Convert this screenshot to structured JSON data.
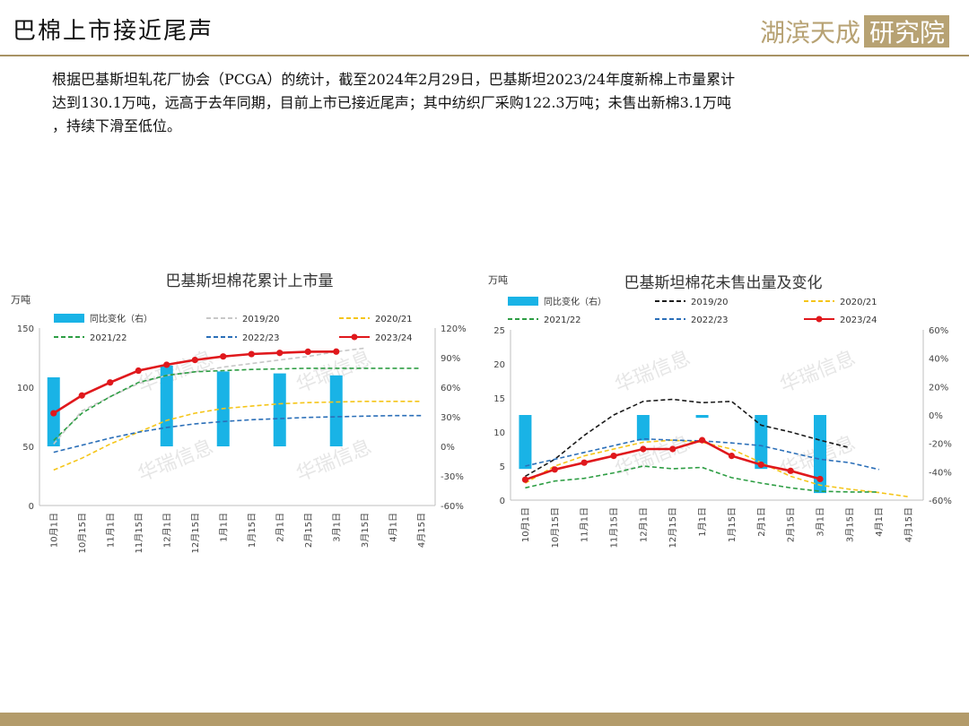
{
  "page": {
    "title": "巴棉上市接近尾声",
    "logo_text": "湖滨天成研究院",
    "paragraph_lines": [
      "根据巴基斯坦轧花厂协会（PCGA）的统计，截至2024年2月29日，巴基斯坦2023/24年度新棉上市量累计",
      "达到130.1万吨，远高于去年同期，目前上市已接近尾声；其中纺织厂采购122.3万吨；未售出新棉3.1万吨",
      "，持续下滑至低位。"
    ],
    "watermark_text": "华瑞信息"
  },
  "colors": {
    "bar": "#19b3e6",
    "s2019": "#c8c8c8",
    "s2019_right": "#1a1a1a",
    "s2020": "#f5c518",
    "s2021": "#2e9e44",
    "s2022": "#2b6fb8",
    "s2023": "#e0181c",
    "header_line": "#a89264",
    "footer": "#b39b6a"
  },
  "chart_data": [
    {
      "type": "line",
      "title": "巴基斯坦棉花累计上市量",
      "ylabel": "万吨",
      "categories": [
        "10月1日",
        "10月15日",
        "11月1日",
        "11月15日",
        "12月1日",
        "12月15日",
        "1月1日",
        "1月15日",
        "2月1日",
        "2月15日",
        "3月1日",
        "3月15日",
        "4月1日",
        "4月15日"
      ],
      "ylim": [
        0,
        150
      ],
      "yticks": [
        0,
        50,
        100,
        150
      ],
      "y2lim": [
        -60,
        120
      ],
      "y2ticks": [
        -60,
        -30,
        0,
        30,
        60,
        90,
        120
      ],
      "y2ticklabels": [
        "-60%",
        "-30%",
        "0%",
        "30%",
        "60%",
        "90%",
        "120%"
      ],
      "legend": [
        {
          "label": "同比变化（右）",
          "key": "bar",
          "kind": "bar"
        },
        {
          "label": "2019/20",
          "key": "s2019",
          "kind": "dash"
        },
        {
          "label": "2020/21",
          "key": "s2020",
          "kind": "dash"
        },
        {
          "label": "2021/22",
          "key": "s2021",
          "kind": "dash"
        },
        {
          "label": "2022/23",
          "key": "s2022",
          "kind": "dash"
        },
        {
          "label": "2023/24",
          "key": "s2023",
          "kind": "solid"
        }
      ],
      "bars": {
        "name": "同比变化（右）",
        "axis": "right",
        "values": [
          70,
          null,
          null,
          null,
          82,
          null,
          76,
          null,
          74,
          null,
          72,
          null,
          null,
          null
        ]
      },
      "series": [
        {
          "name": "2019/20",
          "key": "s2019",
          "axis": "left",
          "values": [
            52,
            80,
            92,
            103,
            110,
            113,
            117,
            120,
            123,
            126,
            130,
            133,
            null,
            null
          ]
        },
        {
          "name": "2020/21",
          "key": "s2020",
          "axis": "left",
          "values": [
            30,
            40,
            52,
            62,
            72,
            78,
            82,
            84,
            86,
            87,
            87.5,
            88,
            88,
            88
          ]
        },
        {
          "name": "2021/22",
          "key": "s2021",
          "axis": "left",
          "values": [
            55,
            78,
            92,
            104,
            110,
            113,
            114,
            115,
            115.5,
            116,
            116,
            116,
            116,
            116
          ]
        },
        {
          "name": "2022/23",
          "key": "s2022",
          "axis": "left",
          "values": [
            45,
            51,
            57,
            62,
            66,
            69,
            71,
            72.5,
            73.5,
            74.5,
            75,
            75.5,
            76,
            76
          ]
        },
        {
          "name": "2023/24",
          "key": "s2023",
          "axis": "left",
          "marker": true,
          "values": [
            78,
            93,
            104,
            114,
            119,
            123,
            126,
            128,
            129,
            130,
            130.1,
            null,
            null,
            null
          ]
        }
      ]
    },
    {
      "type": "line",
      "title": "巴基斯坦棉花未售出量及变化",
      "ylabel": "万吨",
      "categories": [
        "10月1日",
        "10月15日",
        "11月1日",
        "11月15日",
        "12月1日",
        "12月15日",
        "1月1日",
        "1月15日",
        "2月1日",
        "2月15日",
        "3月1日",
        "3月15日",
        "4月1日",
        "4月15日"
      ],
      "ylim": [
        0,
        25
      ],
      "yticks": [
        0,
        5,
        10,
        15,
        20,
        25
      ],
      "y2lim": [
        -60,
        60
      ],
      "y2ticks": [
        -60,
        -40,
        -20,
        0,
        20,
        40,
        60
      ],
      "y2ticklabels": [
        "-60%",
        "-40%",
        "-20%",
        "0%",
        "20%",
        "40%",
        "60%"
      ],
      "legend": [
        {
          "label": "同比变化（右）",
          "key": "bar",
          "kind": "bar"
        },
        {
          "label": "2019/20",
          "key": "s2019_right",
          "kind": "dash"
        },
        {
          "label": "2020/21",
          "key": "s2020",
          "kind": "dash"
        },
        {
          "label": "2021/22",
          "key": "s2021",
          "kind": "dash"
        },
        {
          "label": "2022/23",
          "key": "s2022",
          "kind": "dash"
        },
        {
          "label": "2023/24",
          "key": "s2023",
          "kind": "solid"
        }
      ],
      "bars": {
        "name": "同比变化（右）",
        "axis": "right",
        "values": [
          -38,
          null,
          null,
          null,
          -18,
          null,
          -2,
          null,
          -38,
          null,
          -55,
          null,
          null,
          null
        ]
      },
      "series": [
        {
          "name": "2019/20",
          "key": "s2019_right",
          "axis": "left",
          "values": [
            3.5,
            6,
            9.5,
            12.5,
            14.5,
            14.8,
            14.3,
            14.5,
            11,
            10,
            8.8,
            7.7,
            null,
            null
          ]
        },
        {
          "name": "2020/21",
          "key": "s2020",
          "axis": "left",
          "values": [
            2.5,
            5,
            6.5,
            7.5,
            8.5,
            8.8,
            8.5,
            7.5,
            5.5,
            3.5,
            2.2,
            1.6,
            1.1,
            0.5
          ]
        },
        {
          "name": "2021/22",
          "key": "s2021",
          "axis": "left",
          "values": [
            1.8,
            2.8,
            3.2,
            4,
            5,
            4.6,
            4.8,
            3.3,
            2.5,
            1.8,
            1.3,
            1.2,
            1.2,
            null
          ]
        },
        {
          "name": "2022/23",
          "key": "s2022",
          "axis": "left",
          "values": [
            5,
            6,
            7,
            8,
            9,
            8.8,
            8.7,
            8.4,
            8,
            7,
            6,
            5.5,
            4.5,
            null
          ]
        },
        {
          "name": "2023/24",
          "key": "s2023",
          "axis": "left",
          "marker": true,
          "values": [
            3,
            4.5,
            5.5,
            6.5,
            7.5,
            7.5,
            8.8,
            6.5,
            5.2,
            4.3,
            3.1,
            null,
            null,
            null
          ]
        }
      ]
    }
  ]
}
